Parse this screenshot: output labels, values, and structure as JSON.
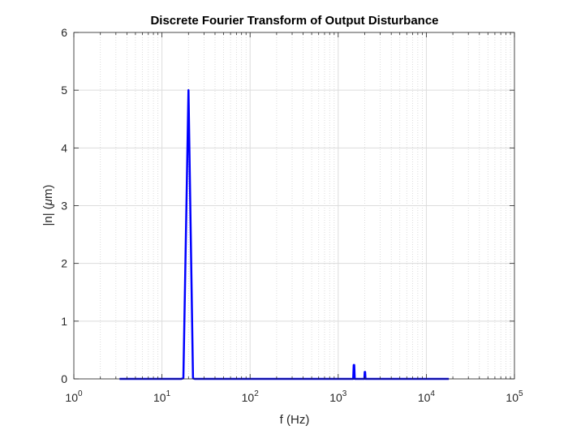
{
  "chart_data": {
    "type": "line",
    "title": "Discrete Fourier Transform of Output Disturbance",
    "xlabel": "f (Hz)",
    "ylabel_parts": {
      "before": "|n| (",
      "greek": "μ",
      "after": "m)"
    },
    "x_scale": "log",
    "xlim": [
      1,
      100000
    ],
    "ylim": [
      0,
      6
    ],
    "grid": true,
    "minor_grid": true,
    "x_ticks": [
      {
        "value": 1,
        "base": "10",
        "exponent": "0"
      },
      {
        "value": 10,
        "base": "10",
        "exponent": "1"
      },
      {
        "value": 100,
        "base": "10",
        "exponent": "2"
      },
      {
        "value": 1000,
        "base": "10",
        "exponent": "3"
      },
      {
        "value": 10000,
        "base": "10",
        "exponent": "4"
      },
      {
        "value": 100000,
        "base": "10",
        "exponent": "5"
      }
    ],
    "y_ticks": [
      {
        "value": 0,
        "label": "0"
      },
      {
        "value": 1,
        "label": "1"
      },
      {
        "value": 2,
        "label": "2"
      },
      {
        "value": 3,
        "label": "3"
      },
      {
        "value": 4,
        "label": "4"
      },
      {
        "value": 5,
        "label": "5"
      },
      {
        "value": 6,
        "label": "6"
      }
    ],
    "series": [
      {
        "color": "#0000ff",
        "x": [
          3.3,
          10,
          16.5,
          17.5,
          20,
          22.5,
          23.5,
          50,
          100,
          500,
          1000,
          1480,
          1500,
          1520,
          1540,
          1800,
          1980,
          2000,
          2020,
          2040,
          5000,
          10000,
          18000
        ],
        "y": [
          0,
          0,
          0,
          0.01,
          5.0,
          0.01,
          0,
          0,
          0,
          0,
          0,
          0,
          0.24,
          0.24,
          0,
          0,
          0,
          0.12,
          0.12,
          0,
          0,
          0,
          0
        ]
      }
    ]
  }
}
